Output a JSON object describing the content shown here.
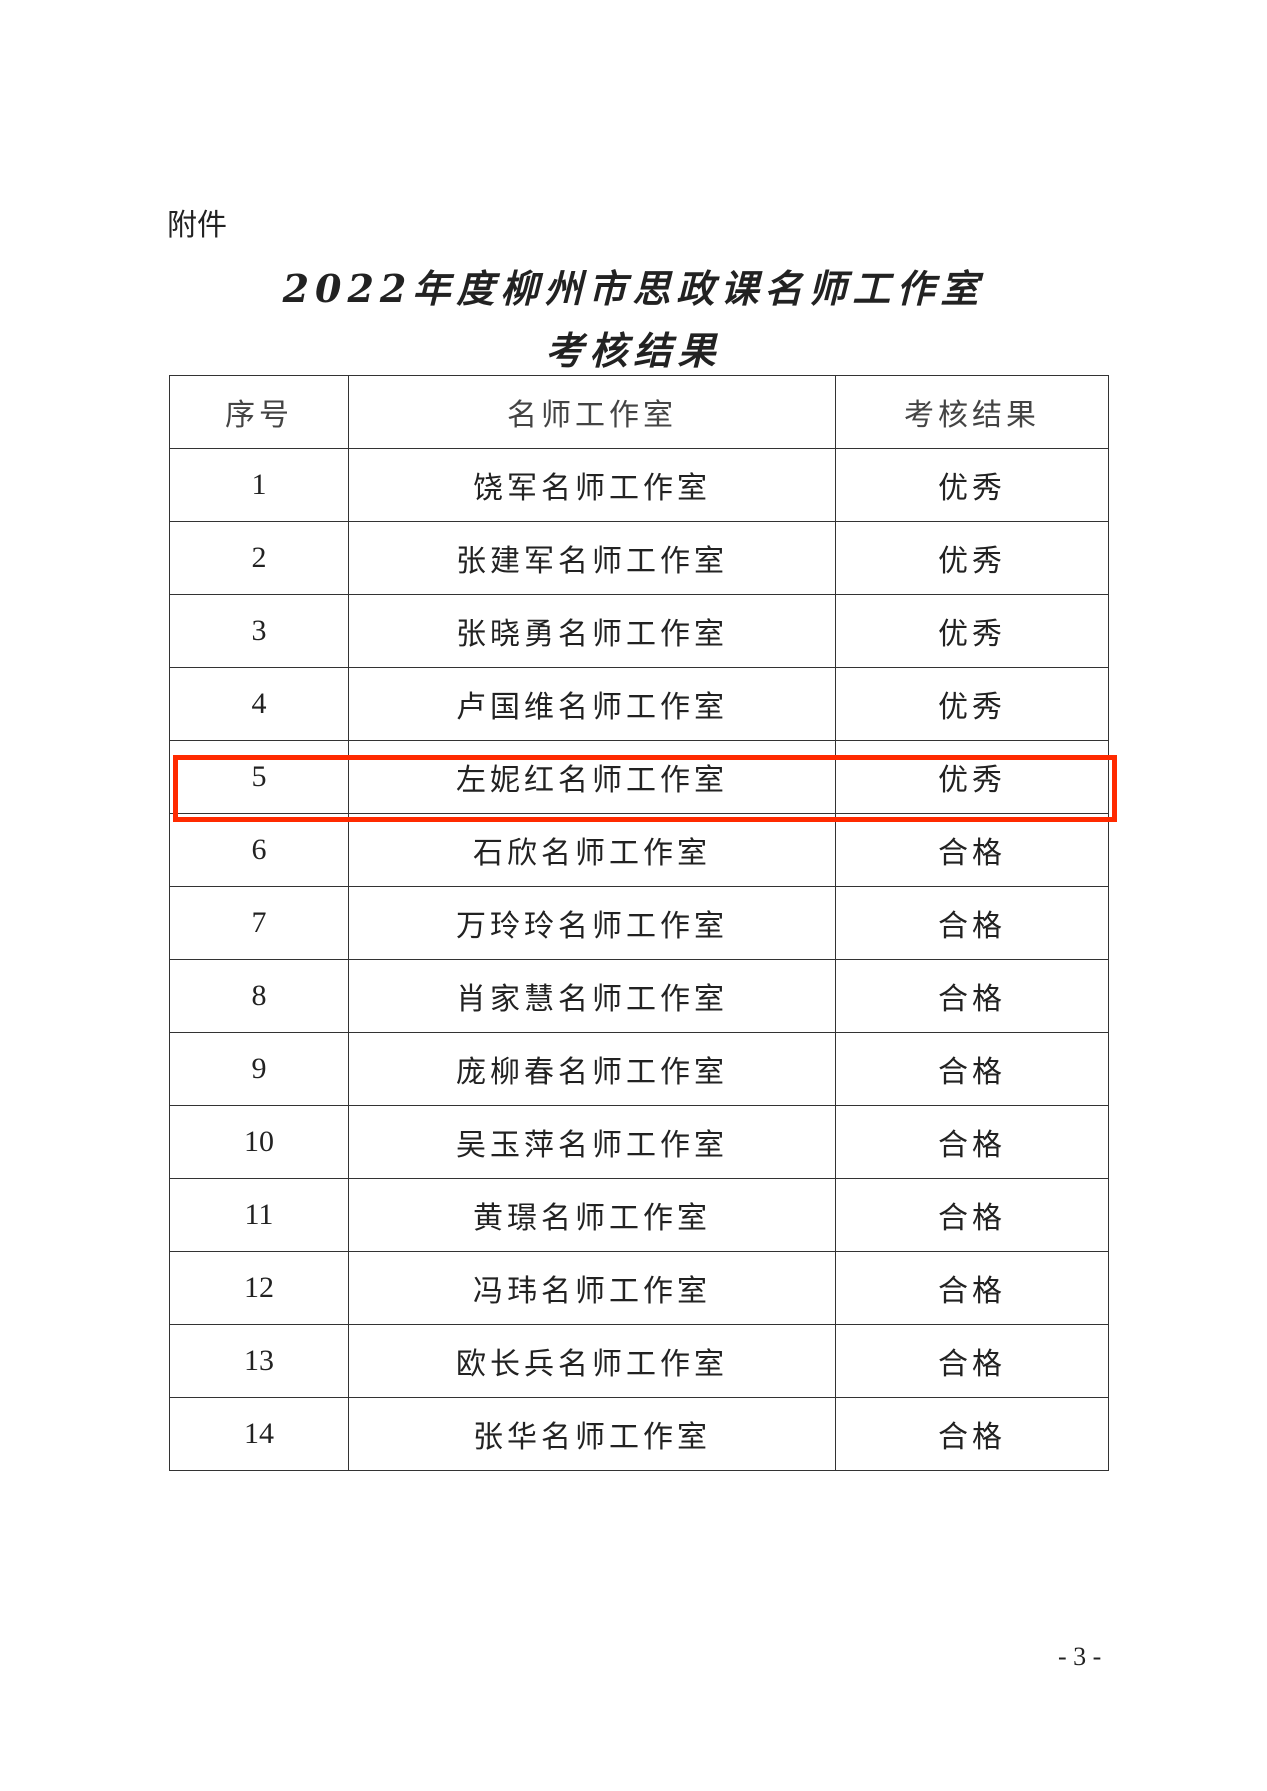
{
  "attachment_label": "附件",
  "title_line1": "2022年度柳州市思政课名师工作室",
  "title_line2": "考核结果",
  "table": {
    "headers": [
      "序号",
      "名师工作室",
      "考核结果"
    ],
    "rows": [
      [
        "1",
        "饶军名师工作室",
        "优秀"
      ],
      [
        "2",
        "张建军名师工作室",
        "优秀"
      ],
      [
        "3",
        "张晓勇名师工作室",
        "优秀"
      ],
      [
        "4",
        "卢国维名师工作室",
        "优秀"
      ],
      [
        "5",
        "左妮红名师工作室",
        "优秀"
      ],
      [
        "6",
        "石欣名师工作室",
        "合格"
      ],
      [
        "7",
        "万玲玲名师工作室",
        "合格"
      ],
      [
        "8",
        "肖家慧名师工作室",
        "合格"
      ],
      [
        "9",
        "庞柳春名师工作室",
        "合格"
      ],
      [
        "10",
        "吴玉萍名师工作室",
        "合格"
      ],
      [
        "11",
        "黄璟名师工作室",
        "合格"
      ],
      [
        "12",
        "冯玮名师工作室",
        "合格"
      ],
      [
        "13",
        "欧长兵名师工作室",
        "合格"
      ],
      [
        "14",
        "张华名师工作室",
        "合格"
      ]
    ]
  },
  "highlight_color": "#ff2a00",
  "page_number": "- 3 -"
}
